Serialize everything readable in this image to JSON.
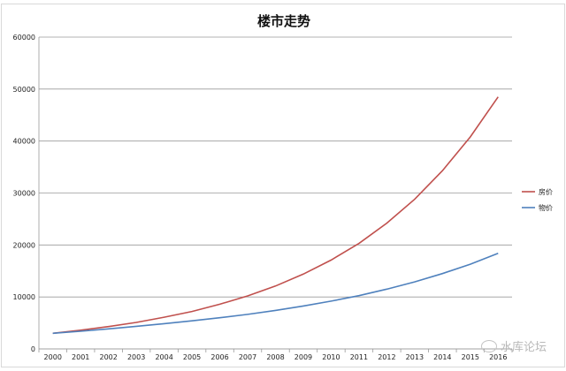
{
  "chart_data": {
    "type": "line",
    "title": "楼市走势",
    "xlabel": "",
    "ylabel": "",
    "x": [
      "2000",
      "2001",
      "2002",
      "2003",
      "2004",
      "2005",
      "2006",
      "2007",
      "2008",
      "2009",
      "2010",
      "2011",
      "2012",
      "2013",
      "2014",
      "2015",
      "2016"
    ],
    "ylim": [
      0,
      60000
    ],
    "yticks": [
      "0",
      "10000",
      "20000",
      "30000",
      "40000",
      "50000",
      "60000"
    ],
    "grid": true,
    "legend_position": "right",
    "series": [
      {
        "name": "房价",
        "color": "#c0504d",
        "values": [
          3000,
          3600,
          4300,
          5100,
          6100,
          7200,
          8600,
          10200,
          12100,
          14400,
          17100,
          20300,
          24200,
          28800,
          34300,
          40800,
          48500
        ]
      },
      {
        "name": "物价",
        "color": "#4f81bd",
        "values": [
          3000,
          3400,
          3850,
          4350,
          4850,
          5400,
          6000,
          6650,
          7400,
          8250,
          9200,
          10250,
          11500,
          12900,
          14500,
          16300,
          18400
        ]
      }
    ]
  },
  "watermark": {
    "text": "水库论坛"
  }
}
